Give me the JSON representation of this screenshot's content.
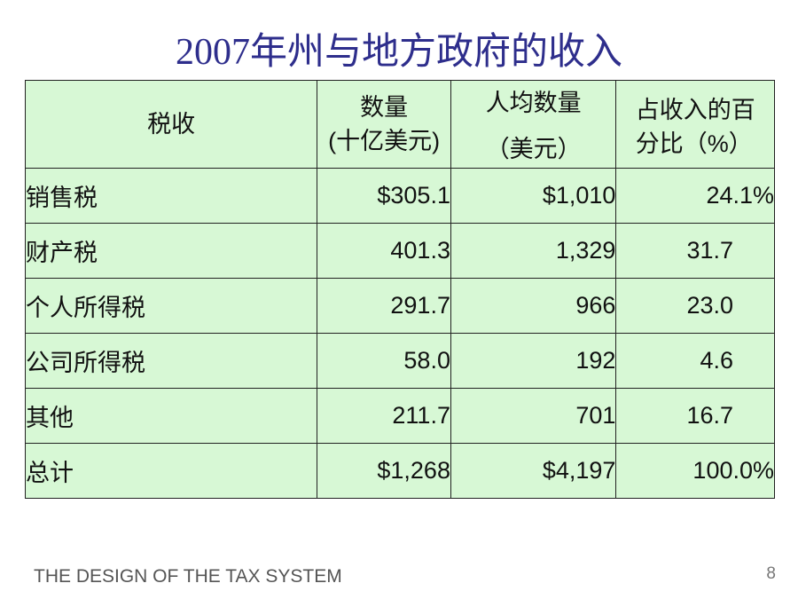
{
  "title": "2007年州与地方政府的收入",
  "table": {
    "headers": {
      "col1": "税收",
      "col2_line1": "数量",
      "col2_line2": "(十亿美元)",
      "col3_line1": "人均数量",
      "col3_line2": "（美元）",
      "col4_line1": "占收入的百",
      "col4_line2": "分比（%）"
    },
    "rows": [
      {
        "label": "销售税",
        "amount": "$305.1",
        "per_capita": "$1,010",
        "percent": "24.1%"
      },
      {
        "label": "财产税",
        "amount": "401.3",
        "per_capita": "1,329",
        "percent": "31.7"
      },
      {
        "label": "个人所得税",
        "amount": "291.7",
        "per_capita": "966",
        "percent": "23.0"
      },
      {
        "label": "公司所得税",
        "amount": "58.0",
        "per_capita": "192",
        "percent": "4.6"
      },
      {
        "label": "其他",
        "amount": "211.7",
        "per_capita": "701",
        "percent": "16.7"
      },
      {
        "label": "总计",
        "amount": "$1,268",
        "per_capita": "$4,197",
        "percent": "100.0%"
      }
    ]
  },
  "footer": "THE DESIGN OF THE TAX SYSTEM",
  "page_number": "8",
  "colors": {
    "title": "#2e2e8c",
    "table_bg": "#d7f8d5"
  }
}
